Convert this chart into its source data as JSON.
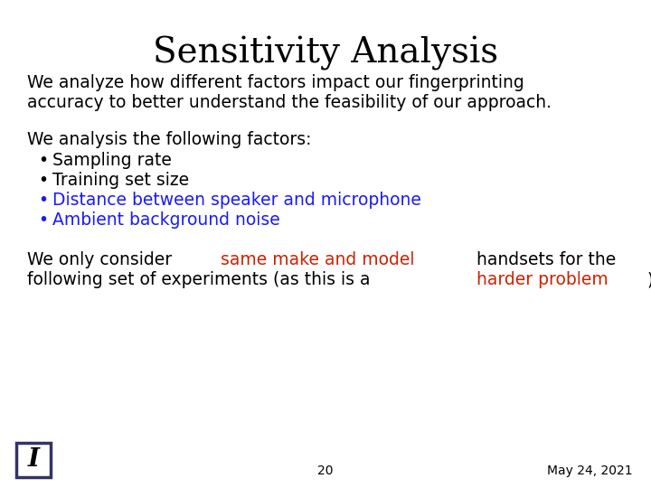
{
  "title": "Sensitivity Analysis",
  "title_fontsize": 28,
  "title_font": "serif",
  "background_color": "#ffffff",
  "text_color_black": "#000000",
  "text_color_blue": "#1a1aff",
  "text_color_red": "#cc2200",
  "body_fontsize": 13.5,
  "body_font": "sans-serif",
  "paragraph1_line1": "We analyze how different factors impact our fingerprinting",
  "paragraph1_line2": "accuracy to better understand the feasibility of our approach.",
  "paragraph2_intro": "We analysis the following factors:",
  "bullets": [
    {
      "text": "Sampling rate",
      "color": "#000000"
    },
    {
      "text": "Training set size",
      "color": "#000000"
    },
    {
      "text": "Distance between speaker and microphone",
      "color": "#1a1aff"
    },
    {
      "text": "Ambient background noise",
      "color": "#1a1aff"
    }
  ],
  "footer_page": "20",
  "footer_date": "May 24, 2021",
  "footer_fontsize": 10,
  "logo_box_color": "#333366"
}
